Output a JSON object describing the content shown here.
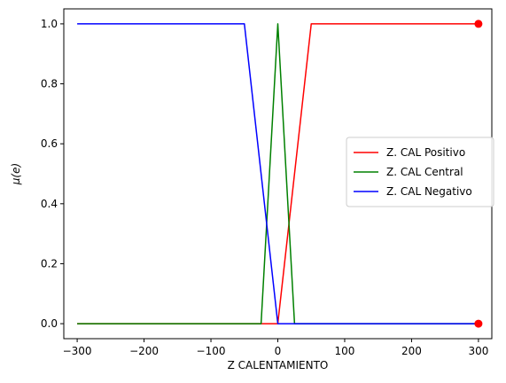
{
  "chart_data": {
    "type": "line",
    "title": "",
    "xlabel": "Z CALENTAMIENTO",
    "ylabel": "μ(e)",
    "xlim": [
      -320,
      320
    ],
    "ylim": [
      -0.05,
      1.05
    ],
    "xticks": [
      -300,
      -200,
      -100,
      0,
      100,
      200,
      300
    ],
    "xtick_labels": [
      "−300",
      "−200",
      "−100",
      "0",
      "100",
      "200",
      "300"
    ],
    "yticks": [
      0.0,
      0.2,
      0.4,
      0.6,
      0.8,
      1.0
    ],
    "ytick_labels": [
      "0.0",
      "0.2",
      "0.4",
      "0.6",
      "0.8",
      "1.0"
    ],
    "grid": false,
    "legend_position": "center-right",
    "series": [
      {
        "name": "Z. CAL Positivo",
        "color": "#ff0000",
        "x": [
          -300,
          0,
          50,
          300
        ],
        "y": [
          0,
          0,
          1,
          1
        ]
      },
      {
        "name": "Z. CAL Central",
        "color": "#008000",
        "x": [
          -300,
          -25,
          0,
          25,
          300
        ],
        "y": [
          0,
          0,
          1,
          0,
          0
        ]
      },
      {
        "name": "Z. CAL Negativo",
        "color": "#0000ff",
        "x": [
          -300,
          -50,
          0,
          300
        ],
        "y": [
          1,
          1,
          0,
          0
        ]
      }
    ],
    "markers": [
      {
        "x": 300,
        "y": 1,
        "color": "#ff0000"
      },
      {
        "x": 300,
        "y": 0,
        "color": "#ff0000"
      }
    ]
  }
}
